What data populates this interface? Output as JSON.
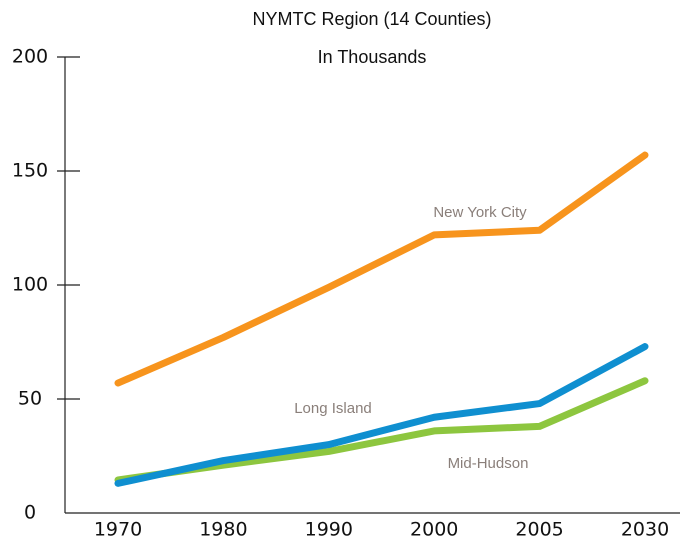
{
  "chart_data": {
    "type": "line",
    "subtitle": "NYMTC Region (14 Counties)",
    "unit_label": "In Thousands",
    "categories": [
      "1970",
      "1980",
      "1990",
      "2000",
      "2005",
      "2030"
    ],
    "series": [
      {
        "name": "New York City",
        "color": "#f7941d",
        "values": [
          57,
          77,
          99,
          122,
          124,
          157
        ]
      },
      {
        "name": "Mid-Hudson",
        "color": "#8dc63f",
        "values": [
          14.5,
          21,
          27,
          36,
          38,
          58
        ]
      },
      {
        "name": "Long Island",
        "color": "#0f8fd0",
        "values": [
          13,
          23,
          30,
          42,
          48,
          73
        ]
      }
    ],
    "ylim": [
      0,
      200
    ],
    "yticks": [
      0,
      50,
      100,
      150,
      200
    ]
  }
}
